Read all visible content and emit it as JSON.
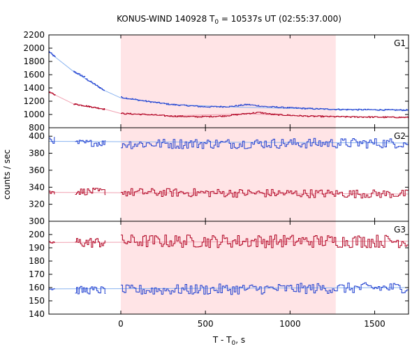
{
  "title": {
    "prefix": "KONUS-WIND 140928 T",
    "sub": "0",
    "suffix": " = 10537s UT (02:55:37.000)"
  },
  "xlabel": {
    "prefix": "T - T",
    "sub": "0",
    "suffix": ", s"
  },
  "ylabel": "counts / sec",
  "colors": {
    "blue": "#1f3fd0",
    "red": "#b00020",
    "fit_blue": "#8ab4f0",
    "fit_red": "#f0a0b0",
    "shade": "#ffe4e6"
  },
  "chart_data": {
    "type": "line",
    "x_range": [
      -425,
      1700
    ],
    "x_ticks": [
      0,
      500,
      1000,
      1500
    ],
    "shaded_interval": [
      0,
      1270
    ],
    "panels": [
      {
        "label": "G1",
        "ylim": [
          800,
          2200
        ],
        "y_ticks": [
          800,
          1000,
          1200,
          1400,
          1600,
          1800,
          2000,
          2200
        ],
        "series": [
          {
            "color": "blue",
            "segments": [
              {
                "x0": -425,
                "x1": -385,
                "step": 4,
                "start": 1950,
                "end": 1860,
                "noise": 12
              },
              {
                "x0": -280,
                "x1": -210,
                "step": 4,
                "start": 1650,
                "end": 1560,
                "noise": 12
              },
              {
                "x0": -210,
                "x1": -95,
                "step": 4,
                "start": 1545,
                "end": 1360,
                "noise": 12
              },
              {
                "x0": 0,
                "x1": 1700,
                "step": 6,
                "points": [
                  [
                    0,
                    1260
                  ],
                  [
                    150,
                    1200
                  ],
                  [
                    300,
                    1150
                  ],
                  [
                    500,
                    1115
                  ],
                  [
                    650,
                    1120
                  ],
                  [
                    750,
                    1150
                  ],
                  [
                    850,
                    1120
                  ],
                  [
                    1000,
                    1100
                  ],
                  [
                    1150,
                    1085
                  ],
                  [
                    1300,
                    1075
                  ],
                  [
                    1500,
                    1070
                  ],
                  [
                    1700,
                    1065
                  ]
                ],
                "noise": 10
              }
            ],
            "fit": {
              "points": [
                [
                  -425,
                  1950
                ],
                [
                  -385,
                  1860
                ],
                [
                  -280,
                  1650
                ],
                [
                  -95,
                  1360
                ],
                [
                  0,
                  1250
                ],
                [
                  300,
                  1150
                ],
                [
                  700,
                  1110
                ],
                [
                  1200,
                  1080
                ],
                [
                  1700,
                  1065
                ]
              ]
            }
          },
          {
            "color": "red",
            "segments": [
              {
                "x0": -425,
                "x1": -385,
                "step": 4,
                "start": 1340,
                "end": 1290,
                "noise": 10
              },
              {
                "x0": -280,
                "x1": -95,
                "step": 4,
                "start": 1160,
                "end": 1080,
                "noise": 10
              },
              {
                "x0": 0,
                "x1": 1700,
                "step": 6,
                "points": [
                  [
                    0,
                    1015
                  ],
                  [
                    150,
                    1000
                  ],
                  [
                    300,
                    975
                  ],
                  [
                    450,
                    965
                  ],
                  [
                    600,
                    975
                  ],
                  [
                    750,
                    1015
                  ],
                  [
                    820,
                    1030
                  ],
                  [
                    900,
                    1000
                  ],
                  [
                    1100,
                    975
                  ],
                  [
                    1300,
                    965
                  ],
                  [
                    1500,
                    960
                  ],
                  [
                    1700,
                    955
                  ]
                ],
                "noise": 10
              }
            ],
            "fit": {
              "points": [
                [
                  -425,
                  1340
                ],
                [
                  -280,
                  1160
                ],
                [
                  -95,
                  1080
                ],
                [
                  0,
                  1015
                ],
                [
                  300,
                  980
                ],
                [
                  750,
                  1010
                ],
                [
                  1100,
                  975
                ],
                [
                  1700,
                  958
                ]
              ]
            }
          }
        ]
      },
      {
        "label": "G2",
        "ylim": [
          300,
          410
        ],
        "y_ticks": [
          300,
          320,
          340,
          360,
          380,
          400
        ],
        "series": [
          {
            "color": "blue",
            "segments": [
              {
                "x0": -425,
                "x1": -390,
                "step": 8,
                "start": 397,
                "end": 395,
                "noise": 4
              },
              {
                "x0": -270,
                "x1": -90,
                "step": 8,
                "start": 392,
                "end": 392,
                "noise": 4
              },
              {
                "x0": 0,
                "x1": 1700,
                "step": 10,
                "start": 391,
                "end": 392,
                "noise": 6
              }
            ],
            "fit": {
              "points": [
                [
                  -425,
                  394
                ],
                [
                  1700,
                  392
                ]
              ]
            }
          },
          {
            "color": "red",
            "segments": [
              {
                "x0": -425,
                "x1": -390,
                "step": 8,
                "start": 334,
                "end": 334,
                "noise": 3
              },
              {
                "x0": -270,
                "x1": -90,
                "step": 8,
                "start": 335,
                "end": 335,
                "noise": 4
              },
              {
                "x0": 0,
                "x1": 1700,
                "step": 10,
                "start": 334,
                "end": 332,
                "noise": 5
              }
            ],
            "fit": {
              "points": [
                [
                  -425,
                  334
                ],
                [
                  1700,
                  332
                ]
              ]
            }
          }
        ]
      },
      {
        "label": "G3",
        "ylim": [
          140,
          210
        ],
        "y_ticks": [
          140,
          150,
          160,
          170,
          180,
          190,
          200
        ],
        "series": [
          {
            "color": "red",
            "segments": [
              {
                "x0": -425,
                "x1": -390,
                "step": 8,
                "start": 194,
                "end": 194,
                "noise": 1
              },
              {
                "x0": -270,
                "x1": -90,
                "step": 8,
                "start": 194,
                "end": 194,
                "noise": 4
              },
              {
                "x0": 0,
                "x1": 1700,
                "step": 10,
                "start": 195,
                "end": 195,
                "noise": 5
              }
            ],
            "fit": {
              "points": [
                [
                  -425,
                  194
                ],
                [
                  1700,
                  195
                ]
              ]
            }
          },
          {
            "color": "blue",
            "segments": [
              {
                "x0": -425,
                "x1": -390,
                "step": 8,
                "start": 159,
                "end": 159,
                "noise": 1
              },
              {
                "x0": -270,
                "x1": -90,
                "step": 8,
                "start": 158,
                "end": 158,
                "noise": 3
              },
              {
                "x0": 0,
                "x1": 1700,
                "step": 10,
                "start": 158,
                "end": 160,
                "noise": 4
              }
            ],
            "fit": {
              "points": [
                [
                  -425,
                  159
                ],
                [
                  1700,
                  160
                ]
              ]
            }
          }
        ]
      }
    ]
  }
}
